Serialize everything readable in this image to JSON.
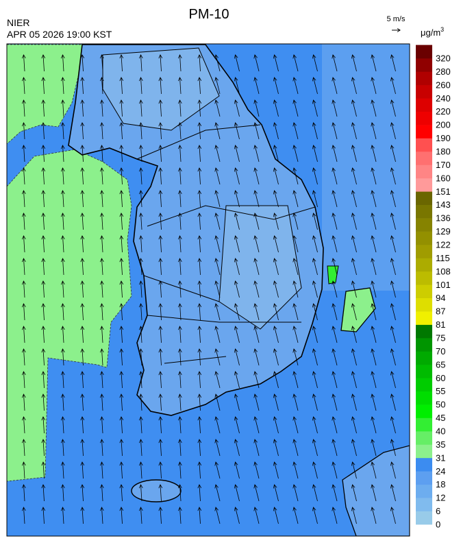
{
  "header": {
    "title": "PM-10",
    "agency": "NIER",
    "datetime": "APR 05 2026 19:00 KST"
  },
  "wind_scale": {
    "label": "5 m/s"
  },
  "legend": {
    "unit": "μg/m",
    "unit_exponent": "3",
    "levels": [
      0,
      6,
      12,
      18,
      24,
      31,
      35,
      40,
      45,
      50,
      55,
      60,
      65,
      70,
      75,
      81,
      87,
      94,
      101,
      108,
      115,
      122,
      129,
      136,
      143,
      151,
      160,
      170,
      180,
      190,
      200,
      220,
      240,
      260,
      280,
      320
    ],
    "colors": [
      "#98cbe9",
      "#80bbee",
      "#6dadef",
      "#5d9ff0",
      "#3c8cf0",
      "#8cf08c",
      "#66ee66",
      "#33ee33",
      "#00ee00",
      "#00dd00",
      "#00cc00",
      "#00bb00",
      "#00aa00",
      "#009500",
      "#007800",
      "#f0f000",
      "#dede00",
      "#cdcd00",
      "#bcbc00",
      "#acac00",
      "#a09c00",
      "#939000",
      "#868300",
      "#797600",
      "#6a6600",
      "#ff9a9a",
      "#ff8585",
      "#ff7070",
      "#ff5050",
      "#ff0000",
      "#ee0000",
      "#dd0000",
      "#c80000",
      "#b00000",
      "#900000",
      "#6a0000"
    ]
  }
}
